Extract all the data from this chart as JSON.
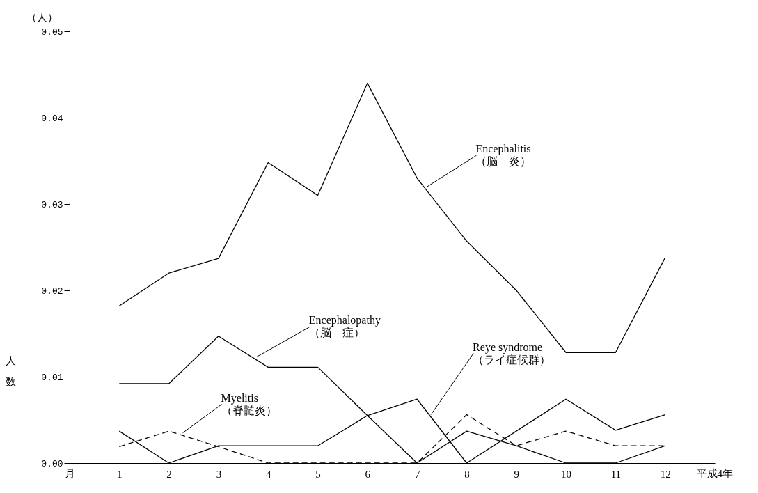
{
  "chart_data": {
    "type": "line",
    "xlabel": "平成4年",
    "ylabel": "人数",
    "x": [
      1,
      2,
      3,
      4,
      5,
      6,
      7,
      8,
      9,
      10,
      11,
      12
    ],
    "series": [
      {
        "color": "#000000",
        "line_style": "solid",
        "values": [
          0.0182,
          0.022,
          0.0237,
          0.0348,
          0.031,
          0.044,
          0.033,
          0.0257,
          0.02,
          0.0128,
          0.0128,
          0.0238
        ]
      },
      {
        "color": "#000000",
        "line_style": "solid",
        "values": [
          0.0092,
          0.0092,
          0.0147,
          0.0111,
          0.0111,
          0.0055,
          0.0,
          0.0037,
          0.002,
          0.0,
          0.0,
          0.002
        ]
      },
      {
        "color": "#000000",
        "line_style": "solid",
        "values": [
          0.0037,
          0.0,
          0.002,
          0.002,
          0.002,
          0.0055,
          0.0074,
          0.0,
          0.0037,
          0.0074,
          0.0038,
          0.0056
        ]
      },
      {
        "color": "#000000",
        "line_style": "dashed",
        "values": [
          0.0019,
          0.0037,
          0.0019,
          0.0,
          0.0,
          0.0,
          0.0,
          0.0056,
          0.002,
          0.0037,
          0.002,
          0.002
        ]
      }
    ],
    "xlim": [
      0,
      13
    ],
    "ylim": [
      0,
      0.05
    ],
    "xticks": [
      1,
      2,
      3,
      4,
      5,
      6,
      7,
      8,
      9,
      10,
      11,
      12
    ],
    "yticks": [
      {
        "value": 0,
        "label": "0.00"
      },
      {
        "value": 0.01,
        "label": "0.01"
      },
      {
        "value": 0.02,
        "label": "0.02"
      },
      {
        "value": 0.03,
        "label": "0.03"
      },
      {
        "value": 0.04,
        "label": "0.04"
      },
      {
        "value": 0.05,
        "label": "0.05"
      }
    ],
    "grid": false,
    "marker": "none",
    "annotations": [
      "（人）",
      "月",
      {
        "text": "Encephalitis\n（脳　炎）",
        "x": 7.2,
        "y": 0.032
      },
      {
        "text": "Encephalopathy\n（脳　症）",
        "x": 3.77,
        "y": 0.0123
      },
      {
        "text": "Reye syndrome\n（ライ症候群）",
        "x": 7.28,
        "y": 0.0056
      },
      {
        "text": "Myelitis\n（脊髄炎）",
        "x": 2.28,
        "y": 0.0035
      }
    ]
  }
}
